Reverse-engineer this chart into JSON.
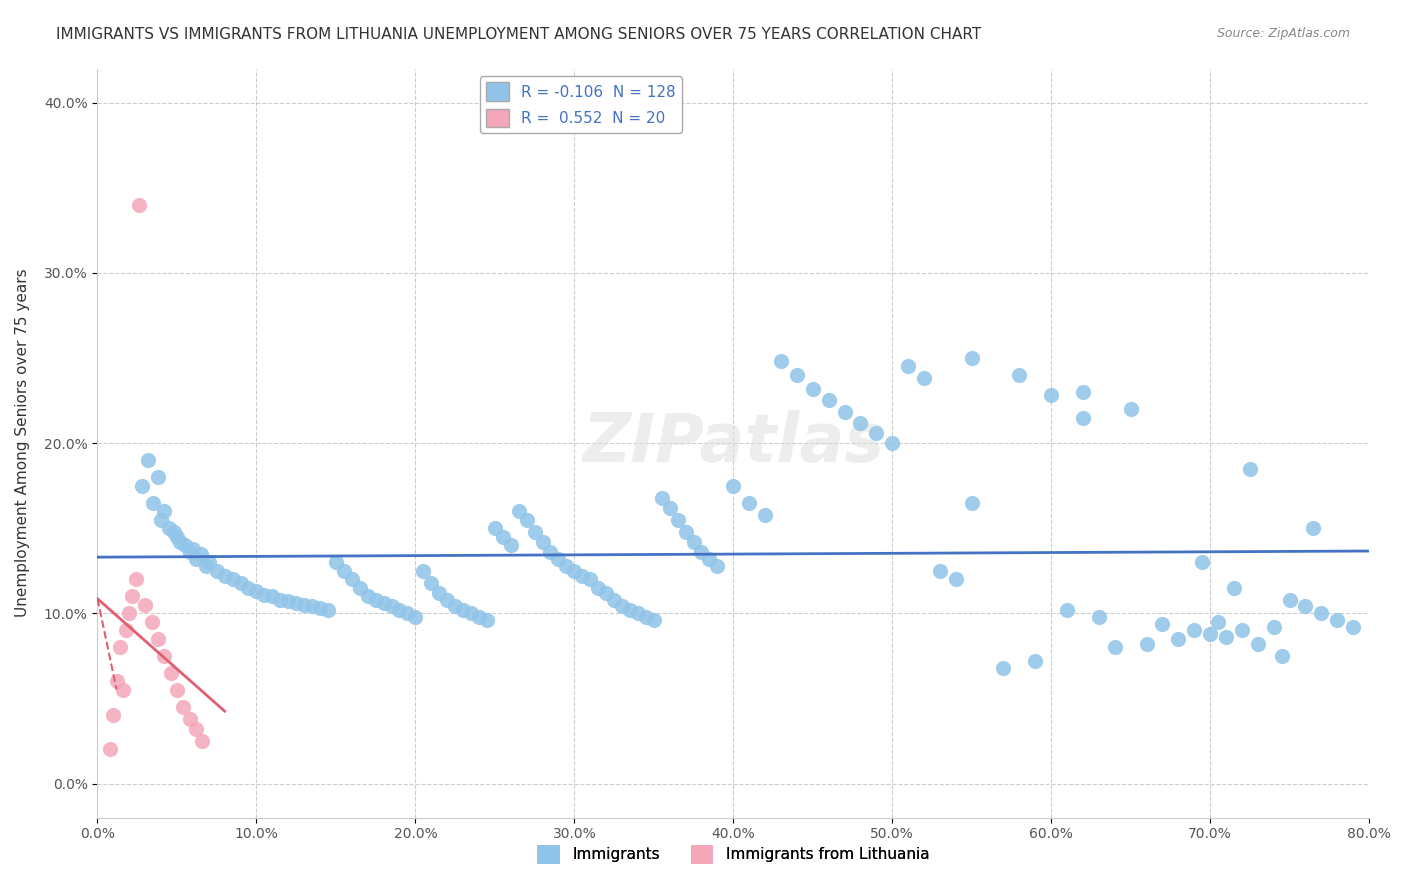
{
  "title": "IMMIGRANTS VS IMMIGRANTS FROM LITHUANIA UNEMPLOYMENT AMONG SENIORS OVER 75 YEARS CORRELATION CHART",
  "source": "Source: ZipAtlas.com",
  "xlabel": "",
  "ylabel": "Unemployment Among Seniors over 75 years",
  "xlim": [
    0.0,
    0.8
  ],
  "ylim": [
    -0.02,
    0.42
  ],
  "xticks": [
    0.0,
    0.1,
    0.2,
    0.3,
    0.4,
    0.5,
    0.6,
    0.7,
    0.8
  ],
  "xticklabels": [
    "0.0%",
    "10.0%",
    "20.0%",
    "30.0%",
    "40.0%",
    "50.0%",
    "60.0%",
    "70.0%",
    "80.0%"
  ],
  "yticks": [
    0.0,
    0.1,
    0.2,
    0.3,
    0.4
  ],
  "yticklabels": [
    "0.0%",
    "10.0%",
    "20.0%",
    "30.0%",
    "40.0%"
  ],
  "blue_color": "#90c4e8",
  "pink_color": "#f4a7b9",
  "blue_line_color": "#4472c4",
  "pink_line_color": "#e06070",
  "r_blue": -0.106,
  "n_blue": 128,
  "r_pink": 0.552,
  "n_pink": 20,
  "legend_label_blue": "Immigrants",
  "legend_label_pink": "Immigrants from Lithuania",
  "watermark": "ZIPatlas",
  "blue_scatter_x": [
    0.032,
    0.028,
    0.035,
    0.04,
    0.045,
    0.05,
    0.055,
    0.06,
    0.065,
    0.07,
    0.038,
    0.042,
    0.048,
    0.052,
    0.058,
    0.062,
    0.068,
    0.075,
    0.08,
    0.085,
    0.09,
    0.095,
    0.1,
    0.105,
    0.11,
    0.115,
    0.12,
    0.125,
    0.13,
    0.135,
    0.14,
    0.145,
    0.15,
    0.155,
    0.16,
    0.165,
    0.17,
    0.175,
    0.18,
    0.185,
    0.19,
    0.195,
    0.2,
    0.205,
    0.21,
    0.215,
    0.22,
    0.225,
    0.23,
    0.235,
    0.24,
    0.245,
    0.25,
    0.255,
    0.26,
    0.265,
    0.27,
    0.275,
    0.28,
    0.285,
    0.29,
    0.295,
    0.3,
    0.305,
    0.31,
    0.315,
    0.32,
    0.325,
    0.33,
    0.335,
    0.34,
    0.345,
    0.35,
    0.355,
    0.36,
    0.365,
    0.37,
    0.375,
    0.38,
    0.385,
    0.39,
    0.4,
    0.41,
    0.42,
    0.43,
    0.44,
    0.45,
    0.46,
    0.47,
    0.48,
    0.49,
    0.5,
    0.51,
    0.52,
    0.53,
    0.54,
    0.55,
    0.58,
    0.6,
    0.62,
    0.64,
    0.66,
    0.68,
    0.7,
    0.72,
    0.74,
    0.62,
    0.65,
    0.55,
    0.57,
    0.59,
    0.61,
    0.63,
    0.67,
    0.69,
    0.71,
    0.73,
    0.75,
    0.76,
    0.77,
    0.78,
    0.79,
    0.725,
    0.745,
    0.765,
    0.715,
    0.705,
    0.695
  ],
  "blue_scatter_y": [
    0.19,
    0.175,
    0.165,
    0.155,
    0.15,
    0.145,
    0.14,
    0.138,
    0.135,
    0.13,
    0.18,
    0.16,
    0.148,
    0.142,
    0.136,
    0.132,
    0.128,
    0.125,
    0.122,
    0.12,
    0.118,
    0.115,
    0.113,
    0.111,
    0.11,
    0.108,
    0.107,
    0.106,
    0.105,
    0.104,
    0.103,
    0.102,
    0.13,
    0.125,
    0.12,
    0.115,
    0.11,
    0.108,
    0.106,
    0.104,
    0.102,
    0.1,
    0.098,
    0.125,
    0.118,
    0.112,
    0.108,
    0.104,
    0.102,
    0.1,
    0.098,
    0.096,
    0.15,
    0.145,
    0.14,
    0.16,
    0.155,
    0.148,
    0.142,
    0.136,
    0.132,
    0.128,
    0.125,
    0.122,
    0.12,
    0.115,
    0.112,
    0.108,
    0.104,
    0.102,
    0.1,
    0.098,
    0.096,
    0.168,
    0.162,
    0.155,
    0.148,
    0.142,
    0.136,
    0.132,
    0.128,
    0.175,
    0.165,
    0.158,
    0.248,
    0.24,
    0.232,
    0.225,
    0.218,
    0.212,
    0.206,
    0.2,
    0.245,
    0.238,
    0.125,
    0.12,
    0.25,
    0.24,
    0.228,
    0.23,
    0.08,
    0.082,
    0.085,
    0.088,
    0.09,
    0.092,
    0.215,
    0.22,
    0.165,
    0.068,
    0.072,
    0.102,
    0.098,
    0.094,
    0.09,
    0.086,
    0.082,
    0.108,
    0.104,
    0.1,
    0.096,
    0.092,
    0.185,
    0.075,
    0.15,
    0.115,
    0.095,
    0.13
  ],
  "pink_scatter_x": [
    0.008,
    0.01,
    0.012,
    0.014,
    0.016,
    0.018,
    0.02,
    0.022,
    0.024,
    0.026,
    0.03,
    0.034,
    0.038,
    0.042,
    0.046,
    0.05,
    0.054,
    0.058,
    0.062,
    0.066
  ],
  "pink_scatter_y": [
    0.02,
    0.04,
    0.06,
    0.08,
    0.055,
    0.09,
    0.1,
    0.11,
    0.12,
    0.34,
    0.105,
    0.095,
    0.085,
    0.075,
    0.065,
    0.055,
    0.045,
    0.038,
    0.032,
    0.025
  ]
}
